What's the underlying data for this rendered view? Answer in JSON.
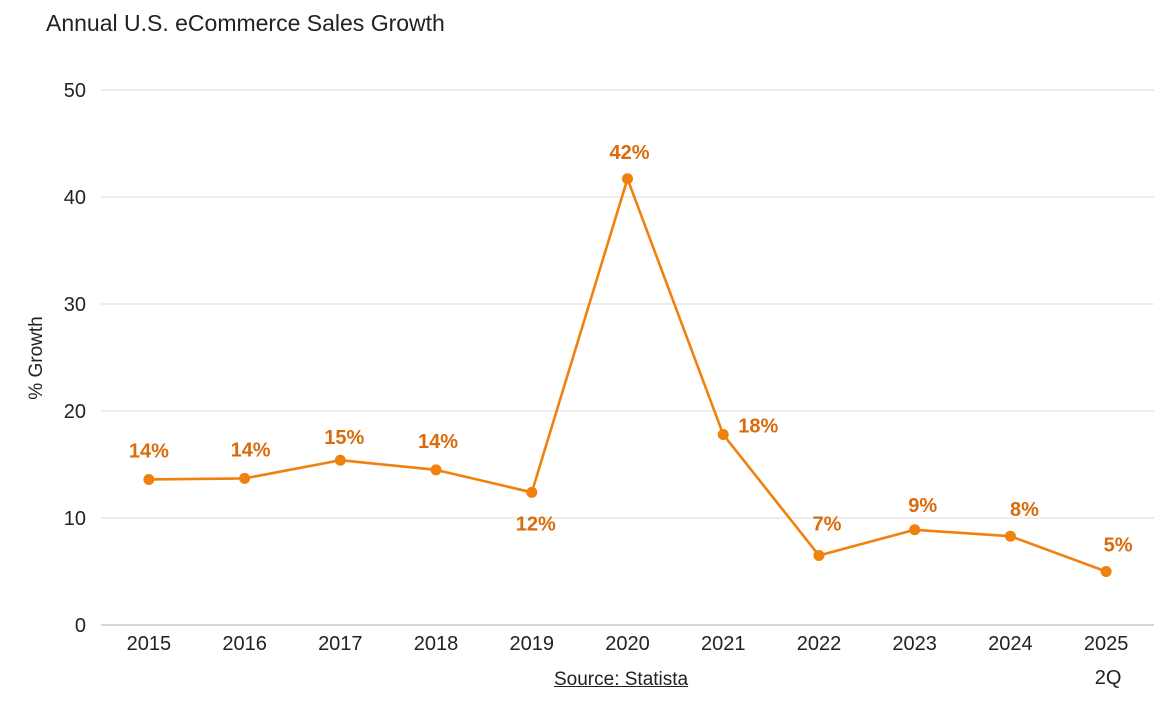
{
  "chart_data": {
    "type": "line",
    "title": "Annual U.S. eCommerce Sales Growth",
    "xlabel": "",
    "ylabel": "% Growth",
    "categories": [
      "2015",
      "2016",
      "2017",
      "2018",
      "2019",
      "2020",
      "2021",
      "2022",
      "2023",
      "2024",
      "2025\n2Q"
    ],
    "series": [
      {
        "values": [
          13.6,
          13.7,
          15.4,
          14.5,
          12.4,
          41.7,
          17.8,
          6.5,
          8.9,
          8.3,
          5.0
        ],
        "data_labels": [
          "14%",
          "14%",
          "15%",
          "14%",
          "12%",
          "42%",
          "18%",
          "7%",
          "9%",
          "8%",
          "5%"
        ]
      }
    ],
    "ylim": [
      0,
      50
    ],
    "yticks": [
      "0",
      "10",
      "20",
      "30",
      "40",
      "50"
    ],
    "grid": true,
    "legend": "none",
    "colors": {
      "line": "#f0810f",
      "label": "#d96b0b",
      "grid": "#e2e2e2",
      "axis": "#bfbfbf"
    },
    "source": "Source: Statista"
  }
}
